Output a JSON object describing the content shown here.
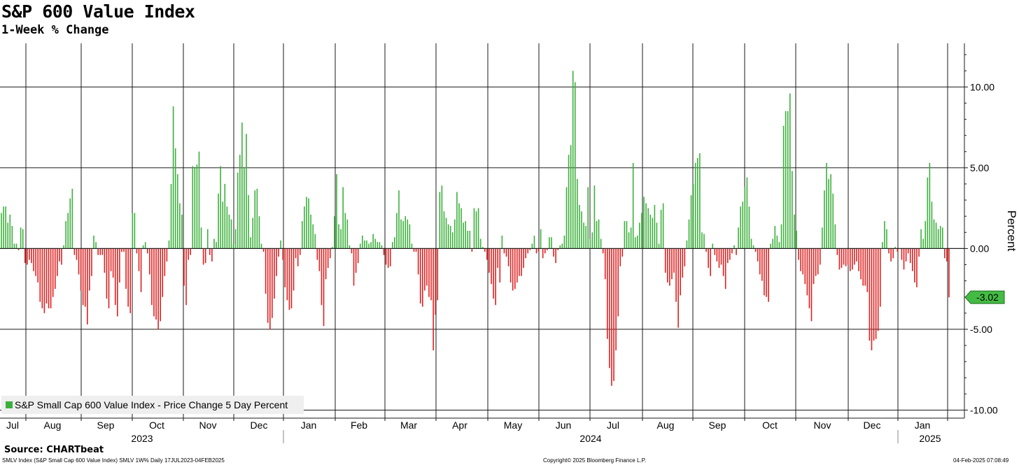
{
  "title": "S&P 600 Value Index",
  "subtitle": "1-Week % Change",
  "source": "Source: CHARTbeat",
  "footer": {
    "left": "SMLV Index (S&P Small Cap 600 Value Index) SMLV 1W% Daily 17JUL2023-04FEB2025",
    "center": "Copyright© 2025 Bloomberg Finance L.P.",
    "right": "04-Feb-2025 07:08:49"
  },
  "colors": {
    "positive": "#3cb03c",
    "negative": "#dd2020",
    "grid": "#1a1a1a",
    "last_value_tag": "#44bb44"
  },
  "chart_data": {
    "type": "bar",
    "title": "S&P 600 Value Index",
    "subtitle": "1-Week % Change",
    "ylabel": "Percent",
    "ylim": [
      -10.5,
      12.7
    ],
    "y_ticks": [
      {
        "value": 10,
        "label": "10.00"
      },
      {
        "value": 5,
        "label": "5.00"
      },
      {
        "value": 0,
        "label": "0.00"
      },
      {
        "value": -5,
        "label": "-5.00"
      },
      {
        "value": -10,
        "label": "-10.00"
      }
    ],
    "months": [
      "Jul",
      "Aug",
      "Sep",
      "Oct",
      "Nov",
      "Dec",
      "Jan",
      "Feb",
      "Mar",
      "Apr",
      "May",
      "Jun",
      "Jul",
      "Aug",
      "Sep",
      "Oct",
      "Nov",
      "Dec",
      "Jan"
    ],
    "years": [
      "2023",
      "2024",
      "2025"
    ],
    "legend": "S&P Small Cap 600 Value Index - Price Change 5 Day Percent",
    "legend_position": "bottom-left",
    "grid": true,
    "last_value": -3.02,
    "last_value_label": "-3.02",
    "x_range": [
      "2023-07-17",
      "2025-02-04"
    ],
    "frequency": "daily",
    "series": [
      {
        "name": "S&P Small Cap 600 Value Index - Price Change 5 Day Percent",
        "values": [
          2.2,
          2.6,
          2.6,
          1.6,
          2.1,
          1.4,
          0.3,
          0.3,
          -0.1,
          1.3,
          1.2,
          -0.9,
          -1.0,
          -0.7,
          -0.9,
          -1.4,
          -1.7,
          -2.1,
          -3.3,
          -3.7,
          -4.0,
          -3.4,
          -3.7,
          -3.7,
          -3.0,
          -2.5,
          -1.7,
          -0.8,
          -1.0,
          0.2,
          1.7,
          2.2,
          3.1,
          3.7,
          -0.4,
          -0.7,
          -1.6,
          -2.6,
          -3.5,
          -3.6,
          -4.7,
          -2.6,
          -1.7,
          0.8,
          0.4,
          -0.4,
          -0.4,
          -0.4,
          -1.5,
          -3.1,
          -3.7,
          -1.4,
          -1.8,
          -3.5,
          -4.2,
          -2.1,
          -0.2,
          -0.2,
          -2.5,
          -3.6,
          -4.0,
          2.2,
          2.2,
          -0.3,
          -1.4,
          -2.7,
          0.2,
          0.4,
          -0.3,
          -1.6,
          -3.5,
          -4.2,
          -4.4,
          -5.0,
          -4.5,
          -3.0,
          -1.7,
          -0.8,
          0.5,
          4.0,
          8.8,
          6.2,
          4.6,
          2.8,
          2.1,
          -2.3,
          -3.5,
          -0.7,
          -0.4,
          5.1,
          5.0,
          5.2,
          6.0,
          1.3,
          -1.0,
          -0.9,
          1.2,
          -0.4,
          -0.8,
          0.6,
          0.4,
          3.4,
          5.1,
          2.9,
          4.0,
          2.6,
          2.1,
          1.8,
          0.3,
          1.2,
          4.7,
          5.8,
          7.8,
          5.0,
          7.1,
          3.3,
          0.7,
          1.9,
          3.6,
          3.7,
          2.0,
          0.3,
          -0.2,
          -2.8,
          -4.6,
          -5.0,
          -4.3,
          -3.1,
          -1.7,
          -0.5,
          0.5,
          -0.7,
          -2.4,
          -3.2,
          -3.8,
          -3.7,
          -2.6,
          -0.6,
          -1.1,
          -0.4,
          1.7,
          2.6,
          3.2,
          3.1,
          2.1,
          1.5,
          0.9,
          -0.7,
          -1.4,
          -3.5,
          -4.8,
          -1.9,
          -1.2,
          -0.6,
          0.1,
          2.0,
          4.6,
          1.5,
          1.2,
          3.8,
          2.2,
          1.8,
          0.2,
          -0.3,
          -2.3,
          -1.5,
          -0.9,
          0.3,
          0.8,
          0.5,
          0.5,
          0.3,
          0.4,
          0.9,
          0.6,
          0.4,
          0.4,
          0.2,
          -0.4,
          -1.0,
          -1.2,
          -1.1,
          0.4,
          0.7,
          2.2,
          3.6,
          1.8,
          1.7,
          2.0,
          1.8,
          1.5,
          0.3,
          -0.2,
          -0.2,
          -1.6,
          -3.4,
          -3.6,
          -2.6,
          -2.3,
          -3.0,
          -3.2,
          -6.3,
          -4.1,
          -3.2,
          3.5,
          3.9,
          2.3,
          1.9,
          1.5,
          1.4,
          1.0,
          1.8,
          3.5,
          2.8,
          2.5,
          1.6,
          1.7,
          1.1,
          1.1,
          -0.2,
          2.5,
          2.3,
          2.5,
          0.6,
          0.1,
          -0.2,
          -0.7,
          -1.5,
          -2.2,
          -3.1,
          -3.5,
          -1.2,
          -2.1,
          0.8,
          -0.3,
          -0.5,
          -1.1,
          -2.1,
          -2.6,
          -2.5,
          -2.1,
          -1.7,
          -1.7,
          -1.2,
          -0.6,
          -0.3,
          -0.1,
          0.3,
          0.8,
          -0.3,
          -0.2,
          1.2,
          -0.6,
          -0.3,
          -0.1,
          0.7,
          0.7,
          -0.5,
          -0.9,
          -0.1,
          0.2,
          0.3,
          0.8,
          3.8,
          5.8,
          6.4,
          11.0,
          10.3,
          4.3,
          2.7,
          2.3,
          1.6,
          1.4,
          3.8,
          0.6,
          1.0,
          3.9,
          1.7,
          1.8,
          0.6,
          -0.3,
          -1.9,
          -5.6,
          -7.4,
          -8.5,
          -8.2,
          -6.3,
          -4.2,
          -1.1,
          -0.5,
          1.7,
          1.7,
          1.0,
          1.3,
          5.3,
          0.7,
          0.8,
          1.6,
          2.2,
          3.2,
          2.8,
          2.5,
          2.1,
          1.9,
          2.7,
          1.6,
          0.3,
          2.4,
          2.8,
          -1.5,
          -2.1,
          -2.3,
          -1.9,
          -1.5,
          -3.3,
          -4.9,
          -2.9,
          -1.8,
          -1.1,
          0.5,
          1.8,
          3.3,
          4.0,
          5.3,
          5.6,
          5.9,
          1.0,
          0.9,
          -0.2,
          -1.2,
          -1.7,
          0.3,
          -0.4,
          -0.8,
          -1.2,
          -1.0,
          -1.7,
          -2.5,
          -0.9,
          -0.7,
          -0.3,
          0.2,
          -0.4,
          1.3,
          2.6,
          2.9,
          3.8,
          4.4,
          2.6,
          0.6,
          0.2,
          -0.2,
          -0.8,
          -1.6,
          -2.0,
          -2.9,
          -3.0,
          -3.3,
          0.3,
          0.6,
          1.4,
          0.8,
          0.4,
          1.5,
          7.6,
          8.5,
          8.5,
          9.6,
          4.8,
          2.1,
          1.1,
          -0.7,
          -1.4,
          -1.6,
          -2.2,
          -2.9,
          -3.7,
          -4.5,
          -2.2,
          -1.7,
          -1.6,
          -1.0,
          1.3,
          3.6,
          5.3,
          4.3,
          4.6,
          3.4,
          1.5,
          -0.4,
          -1.3,
          -1.2,
          -1.0,
          -1.1,
          -1.0,
          -1.4,
          -1.3,
          -1.0,
          -0.8,
          -1.4,
          -1.9,
          -2.3,
          -2.3,
          -2.7,
          -5.7,
          -6.3,
          -5.7,
          -5.6,
          -5.1,
          -3.6,
          0.4,
          1.7,
          1.2,
          -0.3,
          -0.8,
          -0.6,
          0.1,
          -0.2,
          0.0,
          -0.7,
          -1.3,
          -0.8,
          -0.3,
          -0.9,
          -1.4,
          -2.1,
          -2.4,
          -0.5,
          1.2,
          0.6,
          1.7,
          4.4,
          5.3,
          2.9,
          1.8,
          1.6,
          1.2,
          1.4,
          1.3,
          -0.6,
          -0.8,
          -3.02
        ]
      }
    ]
  }
}
